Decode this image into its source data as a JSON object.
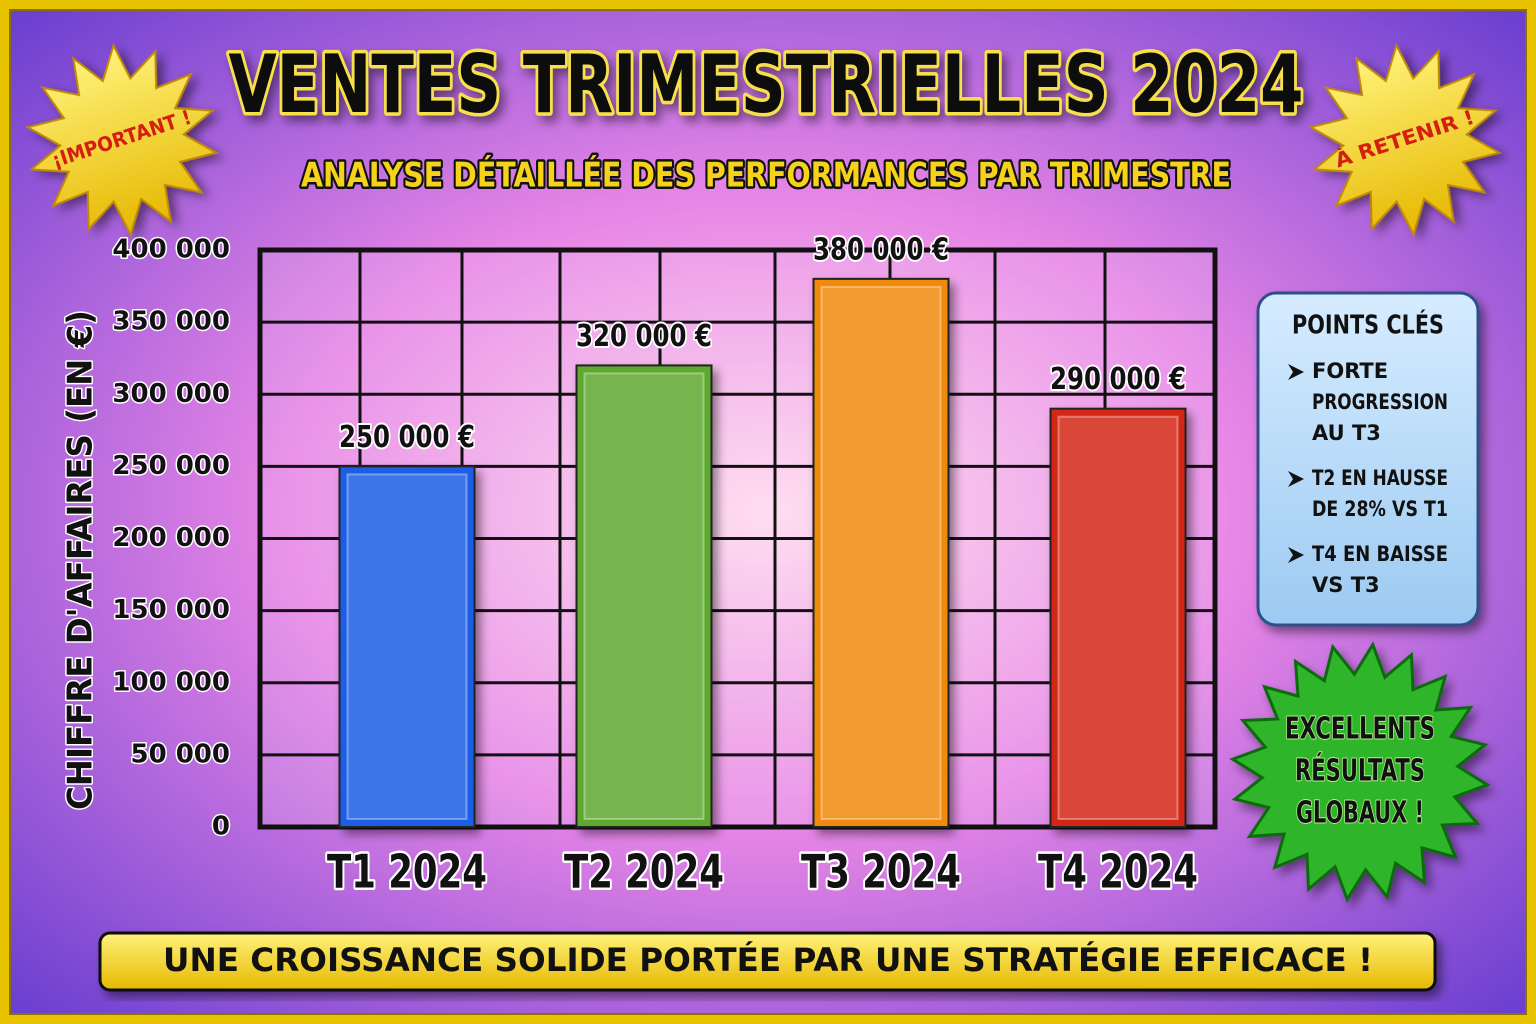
{
  "chart_data": {
    "type": "bar",
    "title": "VENTES TRIMESTRIELLES 2024",
    "subtitle": "ANALYSE DÉTAILLÉE DES PERFORMANCES PAR TRIMESTRE",
    "y_label": "CHIFFRE D'AFFAIRES (EN €)",
    "categories": [
      "T1 2024",
      "T2 2024",
      "T3 2024",
      "T4 2024"
    ],
    "values": [
      250000,
      320000,
      380000,
      290000
    ],
    "value_labels": [
      "250 000 €",
      "320 000 €",
      "380 000 €",
      "290 000 €"
    ],
    "colors": [
      "#1f5fe6",
      "#5fa82e",
      "#f08a0c",
      "#d42812"
    ],
    "ylim": [
      0,
      400000
    ],
    "yticks": [
      {
        "value": 0,
        "label": "0"
      },
      {
        "value": 50000,
        "label": "50 000"
      },
      {
        "value": 100000,
        "label": "100 000"
      },
      {
        "value": 150000,
        "label": "150 000"
      },
      {
        "value": 200000,
        "label": "200 000"
      },
      {
        "value": 250000,
        "label": "250 000"
      },
      {
        "value": 300000,
        "label": "300 000"
      },
      {
        "value": 350000,
        "label": "350 000"
      },
      {
        "value": 400000,
        "label": "400 000"
      }
    ],
    "grid": true,
    "stickers": [
      "¡IMPORTANT !",
      "À RETENIR !"
    ],
    "key_points": {
      "title": "POINTS CLÉS",
      "items": [
        [
          "FORTE",
          "PROGRESSION",
          "AU T3"
        ],
        [
          "T2 EN HAUSSE",
          "DE 28% VS T1"
        ],
        [
          "T4 EN BAISSE",
          "VS T3"
        ]
      ]
    },
    "badge": [
      "EXCELLENTS",
      "RÉSULTATS",
      "GLOBAUX !"
    ],
    "banner": "UNE CROISSANCE SOLIDE PORTÉE PAR UNE STRATÉGIE EFFICACE !"
  }
}
